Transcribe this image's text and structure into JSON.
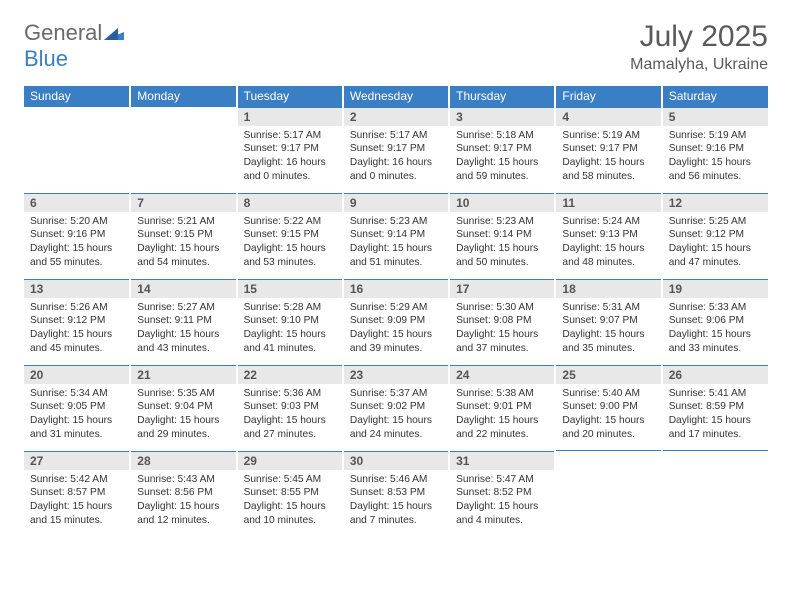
{
  "brand": {
    "part1": "General",
    "part2": "Blue"
  },
  "title": "July 2025",
  "location": "Mamalyha, Ukraine",
  "colors": {
    "header_bg": "#3a7fc4",
    "header_text": "#ffffff",
    "daynum_bg": "#e8e8e8",
    "cell_border_top": "#3a7fc4",
    "page_bg": "#ffffff",
    "body_text": "#333333",
    "title_text": "#5a5a5a"
  },
  "dow": [
    "Sunday",
    "Monday",
    "Tuesday",
    "Wednesday",
    "Thursday",
    "Friday",
    "Saturday"
  ],
  "weeks": [
    [
      null,
      null,
      {
        "n": "1",
        "sunrise": "Sunrise: 5:17 AM",
        "sunset": "Sunset: 9:17 PM",
        "day1": "Daylight: 16 hours",
        "day2": "and 0 minutes."
      },
      {
        "n": "2",
        "sunrise": "Sunrise: 5:17 AM",
        "sunset": "Sunset: 9:17 PM",
        "day1": "Daylight: 16 hours",
        "day2": "and 0 minutes."
      },
      {
        "n": "3",
        "sunrise": "Sunrise: 5:18 AM",
        "sunset": "Sunset: 9:17 PM",
        "day1": "Daylight: 15 hours",
        "day2": "and 59 minutes."
      },
      {
        "n": "4",
        "sunrise": "Sunrise: 5:19 AM",
        "sunset": "Sunset: 9:17 PM",
        "day1": "Daylight: 15 hours",
        "day2": "and 58 minutes."
      },
      {
        "n": "5",
        "sunrise": "Sunrise: 5:19 AM",
        "sunset": "Sunset: 9:16 PM",
        "day1": "Daylight: 15 hours",
        "day2": "and 56 minutes."
      }
    ],
    [
      {
        "n": "6",
        "sunrise": "Sunrise: 5:20 AM",
        "sunset": "Sunset: 9:16 PM",
        "day1": "Daylight: 15 hours",
        "day2": "and 55 minutes."
      },
      {
        "n": "7",
        "sunrise": "Sunrise: 5:21 AM",
        "sunset": "Sunset: 9:15 PM",
        "day1": "Daylight: 15 hours",
        "day2": "and 54 minutes."
      },
      {
        "n": "8",
        "sunrise": "Sunrise: 5:22 AM",
        "sunset": "Sunset: 9:15 PM",
        "day1": "Daylight: 15 hours",
        "day2": "and 53 minutes."
      },
      {
        "n": "9",
        "sunrise": "Sunrise: 5:23 AM",
        "sunset": "Sunset: 9:14 PM",
        "day1": "Daylight: 15 hours",
        "day2": "and 51 minutes."
      },
      {
        "n": "10",
        "sunrise": "Sunrise: 5:23 AM",
        "sunset": "Sunset: 9:14 PM",
        "day1": "Daylight: 15 hours",
        "day2": "and 50 minutes."
      },
      {
        "n": "11",
        "sunrise": "Sunrise: 5:24 AM",
        "sunset": "Sunset: 9:13 PM",
        "day1": "Daylight: 15 hours",
        "day2": "and 48 minutes."
      },
      {
        "n": "12",
        "sunrise": "Sunrise: 5:25 AM",
        "sunset": "Sunset: 9:12 PM",
        "day1": "Daylight: 15 hours",
        "day2": "and 47 minutes."
      }
    ],
    [
      {
        "n": "13",
        "sunrise": "Sunrise: 5:26 AM",
        "sunset": "Sunset: 9:12 PM",
        "day1": "Daylight: 15 hours",
        "day2": "and 45 minutes."
      },
      {
        "n": "14",
        "sunrise": "Sunrise: 5:27 AM",
        "sunset": "Sunset: 9:11 PM",
        "day1": "Daylight: 15 hours",
        "day2": "and 43 minutes."
      },
      {
        "n": "15",
        "sunrise": "Sunrise: 5:28 AM",
        "sunset": "Sunset: 9:10 PM",
        "day1": "Daylight: 15 hours",
        "day2": "and 41 minutes."
      },
      {
        "n": "16",
        "sunrise": "Sunrise: 5:29 AM",
        "sunset": "Sunset: 9:09 PM",
        "day1": "Daylight: 15 hours",
        "day2": "and 39 minutes."
      },
      {
        "n": "17",
        "sunrise": "Sunrise: 5:30 AM",
        "sunset": "Sunset: 9:08 PM",
        "day1": "Daylight: 15 hours",
        "day2": "and 37 minutes."
      },
      {
        "n": "18",
        "sunrise": "Sunrise: 5:31 AM",
        "sunset": "Sunset: 9:07 PM",
        "day1": "Daylight: 15 hours",
        "day2": "and 35 minutes."
      },
      {
        "n": "19",
        "sunrise": "Sunrise: 5:33 AM",
        "sunset": "Sunset: 9:06 PM",
        "day1": "Daylight: 15 hours",
        "day2": "and 33 minutes."
      }
    ],
    [
      {
        "n": "20",
        "sunrise": "Sunrise: 5:34 AM",
        "sunset": "Sunset: 9:05 PM",
        "day1": "Daylight: 15 hours",
        "day2": "and 31 minutes."
      },
      {
        "n": "21",
        "sunrise": "Sunrise: 5:35 AM",
        "sunset": "Sunset: 9:04 PM",
        "day1": "Daylight: 15 hours",
        "day2": "and 29 minutes."
      },
      {
        "n": "22",
        "sunrise": "Sunrise: 5:36 AM",
        "sunset": "Sunset: 9:03 PM",
        "day1": "Daylight: 15 hours",
        "day2": "and 27 minutes."
      },
      {
        "n": "23",
        "sunrise": "Sunrise: 5:37 AM",
        "sunset": "Sunset: 9:02 PM",
        "day1": "Daylight: 15 hours",
        "day2": "and 24 minutes."
      },
      {
        "n": "24",
        "sunrise": "Sunrise: 5:38 AM",
        "sunset": "Sunset: 9:01 PM",
        "day1": "Daylight: 15 hours",
        "day2": "and 22 minutes."
      },
      {
        "n": "25",
        "sunrise": "Sunrise: 5:40 AM",
        "sunset": "Sunset: 9:00 PM",
        "day1": "Daylight: 15 hours",
        "day2": "and 20 minutes."
      },
      {
        "n": "26",
        "sunrise": "Sunrise: 5:41 AM",
        "sunset": "Sunset: 8:59 PM",
        "day1": "Daylight: 15 hours",
        "day2": "and 17 minutes."
      }
    ],
    [
      {
        "n": "27",
        "sunrise": "Sunrise: 5:42 AM",
        "sunset": "Sunset: 8:57 PM",
        "day1": "Daylight: 15 hours",
        "day2": "and 15 minutes."
      },
      {
        "n": "28",
        "sunrise": "Sunrise: 5:43 AM",
        "sunset": "Sunset: 8:56 PM",
        "day1": "Daylight: 15 hours",
        "day2": "and 12 minutes."
      },
      {
        "n": "29",
        "sunrise": "Sunrise: 5:45 AM",
        "sunset": "Sunset: 8:55 PM",
        "day1": "Daylight: 15 hours",
        "day2": "and 10 minutes."
      },
      {
        "n": "30",
        "sunrise": "Sunrise: 5:46 AM",
        "sunset": "Sunset: 8:53 PM",
        "day1": "Daylight: 15 hours",
        "day2": "and 7 minutes."
      },
      {
        "n": "31",
        "sunrise": "Sunrise: 5:47 AM",
        "sunset": "Sunset: 8:52 PM",
        "day1": "Daylight: 15 hours",
        "day2": "and 4 minutes."
      },
      null,
      null
    ]
  ]
}
